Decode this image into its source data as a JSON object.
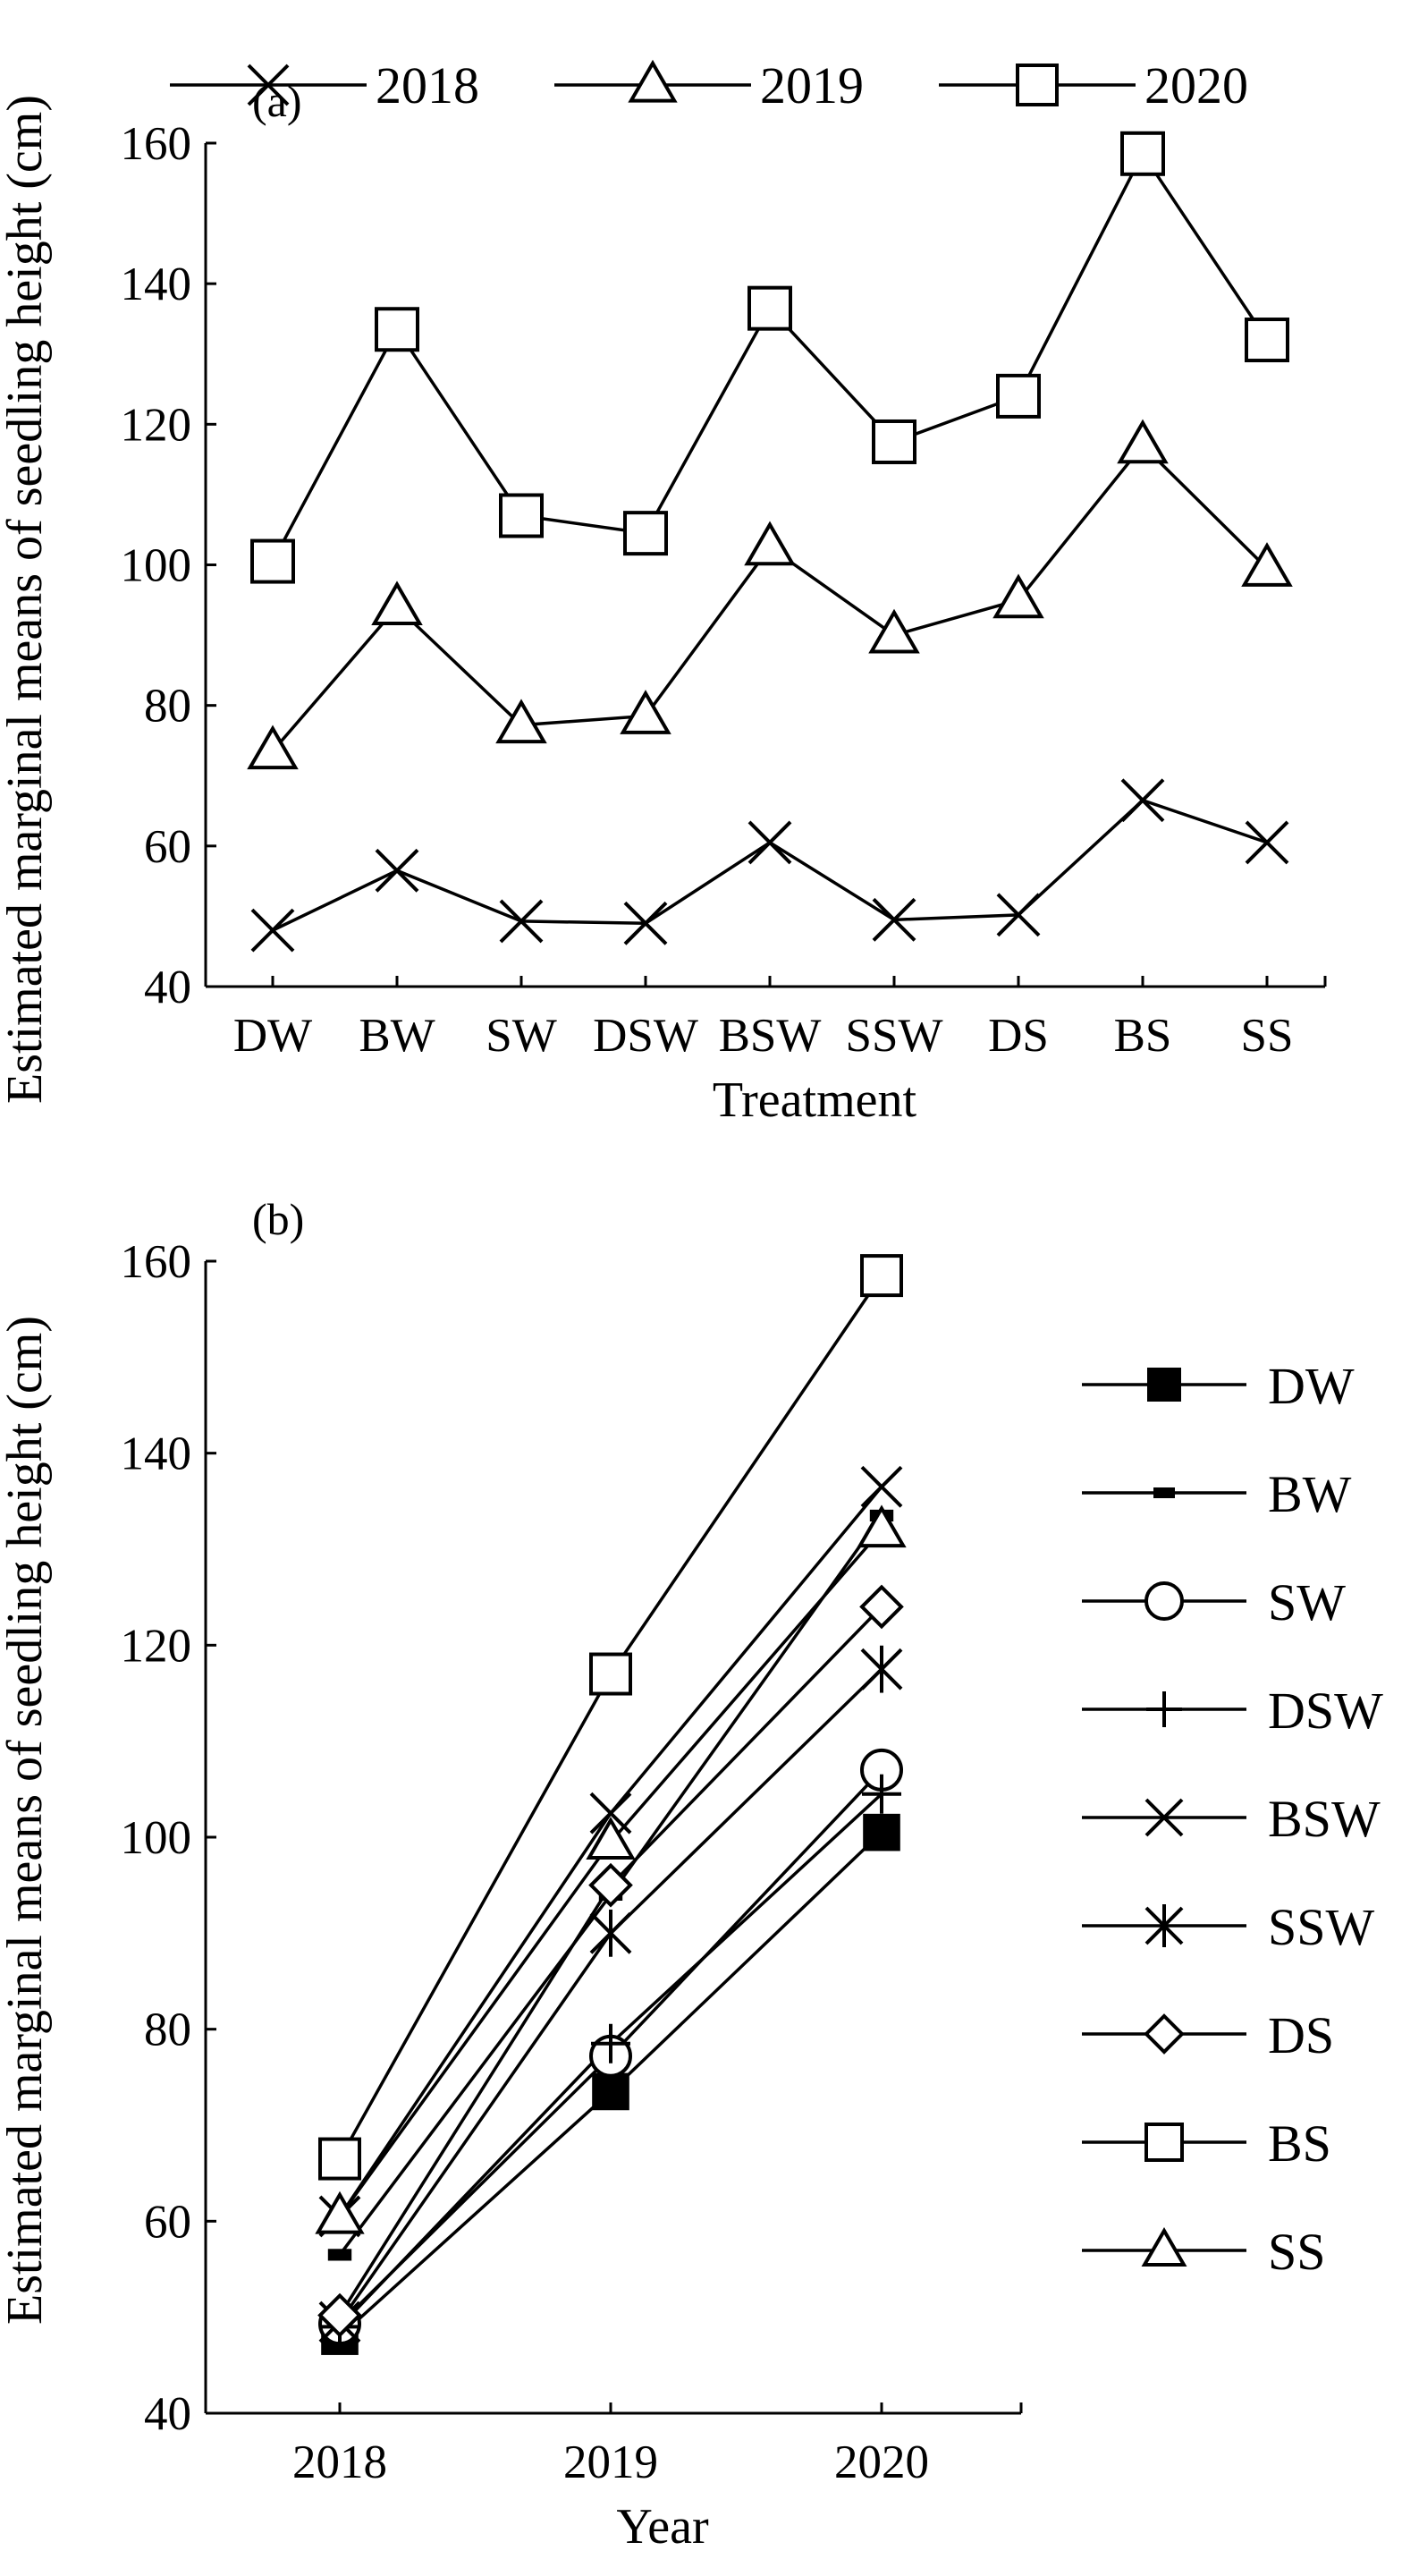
{
  "ylabel": "Estimated marginal means of seedling height (cm)",
  "chart_data": [
    {
      "panel": "(a)",
      "type": "line",
      "xlabel": "Treatment",
      "ylabel": "Estimated marginal means of seedling height (cm)",
      "categories": [
        "DW",
        "BW",
        "SW",
        "DSW",
        "BSW",
        "SSW",
        "DS",
        "BS",
        "SS"
      ],
      "ylim": [
        40,
        160
      ],
      "yticks": [
        40,
        60,
        80,
        100,
        120,
        140,
        160
      ],
      "grid": false,
      "legend_position": "top",
      "series": [
        {
          "name": "2018",
          "marker": "x",
          "values": [
            48,
            56.5,
            49.3,
            49,
            60.5,
            49.5,
            50.2,
            66.5,
            60.5
          ]
        },
        {
          "name": "2019",
          "marker": "triangle-open",
          "values": [
            73.5,
            94,
            77.2,
            78.5,
            102.5,
            90,
            95,
            117,
            99.5
          ]
        },
        {
          "name": "2020",
          "marker": "square-open",
          "values": [
            100.5,
            133.5,
            107,
            104.5,
            136.5,
            117.5,
            124,
            158.5,
            132
          ]
        }
      ]
    },
    {
      "panel": "(b)",
      "type": "line",
      "xlabel": "Year",
      "ylabel": "Estimated marginal means of seedling height (cm)",
      "categories": [
        "2018",
        "2019",
        "2020"
      ],
      "ylim": [
        40,
        160
      ],
      "yticks": [
        40,
        60,
        80,
        100,
        120,
        140,
        160
      ],
      "grid": false,
      "legend_position": "right",
      "series": [
        {
          "name": "DW",
          "marker": "square-filled",
          "values": [
            48,
            73.5,
            100.5
          ]
        },
        {
          "name": "BW",
          "marker": "dash",
          "values": [
            56.5,
            94,
            133.5
          ]
        },
        {
          "name": "SW",
          "marker": "circle-open",
          "values": [
            49.3,
            77.2,
            107
          ]
        },
        {
          "name": "DSW",
          "marker": "plus",
          "values": [
            49,
            78.5,
            104.5
          ]
        },
        {
          "name": "BSW",
          "marker": "x",
          "values": [
            60.5,
            102.5,
            136.5
          ]
        },
        {
          "name": "SSW",
          "marker": "asterisk",
          "values": [
            49.5,
            90,
            117.5
          ]
        },
        {
          "name": "DS",
          "marker": "diamond-open",
          "values": [
            50.2,
            95,
            124
          ]
        },
        {
          "name": "BS",
          "marker": "square-open",
          "values": [
            66.5,
            117,
            158.5
          ]
        },
        {
          "name": "SS",
          "marker": "triangle-open",
          "values": [
            60.5,
            99.5,
            132
          ]
        }
      ]
    }
  ]
}
